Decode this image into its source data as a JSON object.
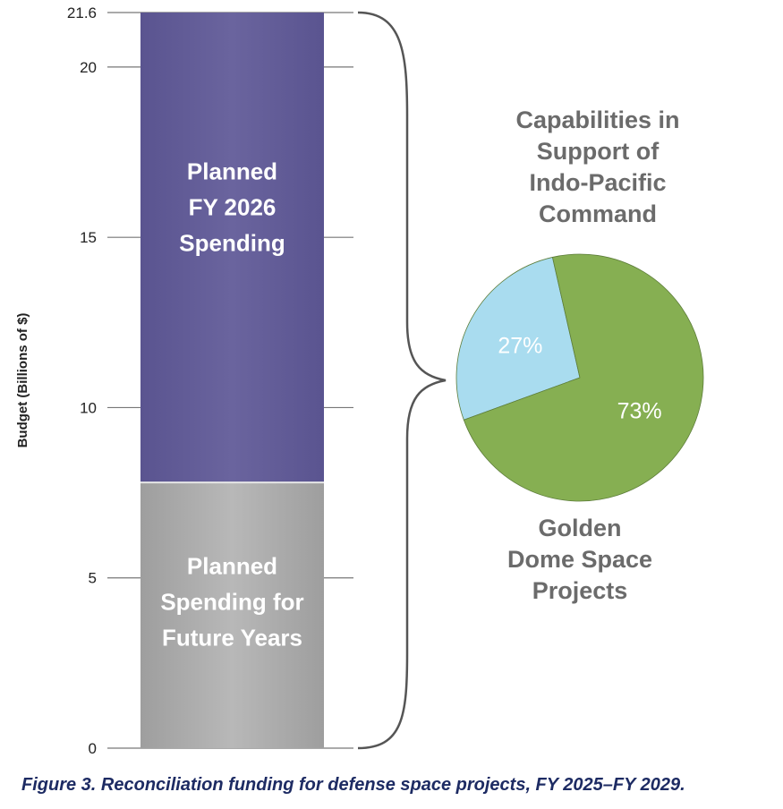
{
  "caption": "Figure 3. Reconciliation funding for defense space projects, FY 2025–FY 2029.",
  "chart_data": [
    {
      "type": "bar",
      "stacked": true,
      "ylabel": "Budget (Billions of $)",
      "ylim": [
        0,
        21.6
      ],
      "yticks": [
        "0",
        "5",
        "10",
        "15",
        "20",
        "21.6"
      ],
      "ytick_values": [
        0,
        5,
        10,
        15,
        20,
        21.6
      ],
      "segments": [
        {
          "name": "Planned Spending for Future Years",
          "lines": [
            "Planned",
            "Spending for",
            "Future Years"
          ],
          "value": 7.8,
          "color": "#a9a9a9"
        },
        {
          "name": "Planned FY 2026 Spending",
          "lines": [
            "Planned",
            "FY 2026",
            "Spending"
          ],
          "value": 13.8,
          "color": "#625c96"
        }
      ]
    },
    {
      "type": "pie",
      "slices": [
        {
          "name": "Capabilities in Support of Indo-Pacific Command",
          "lines": [
            "Capabilities in",
            "Support of",
            "Indo-Pacific",
            "Command"
          ],
          "value": 27,
          "label": "27%",
          "color": "#a9dcef"
        },
        {
          "name": "Golden Dome Space Projects",
          "lines": [
            "Golden",
            "Dome Space",
            "Projects"
          ],
          "value": 73,
          "label": "73%",
          "color": "#86af52"
        }
      ]
    }
  ]
}
